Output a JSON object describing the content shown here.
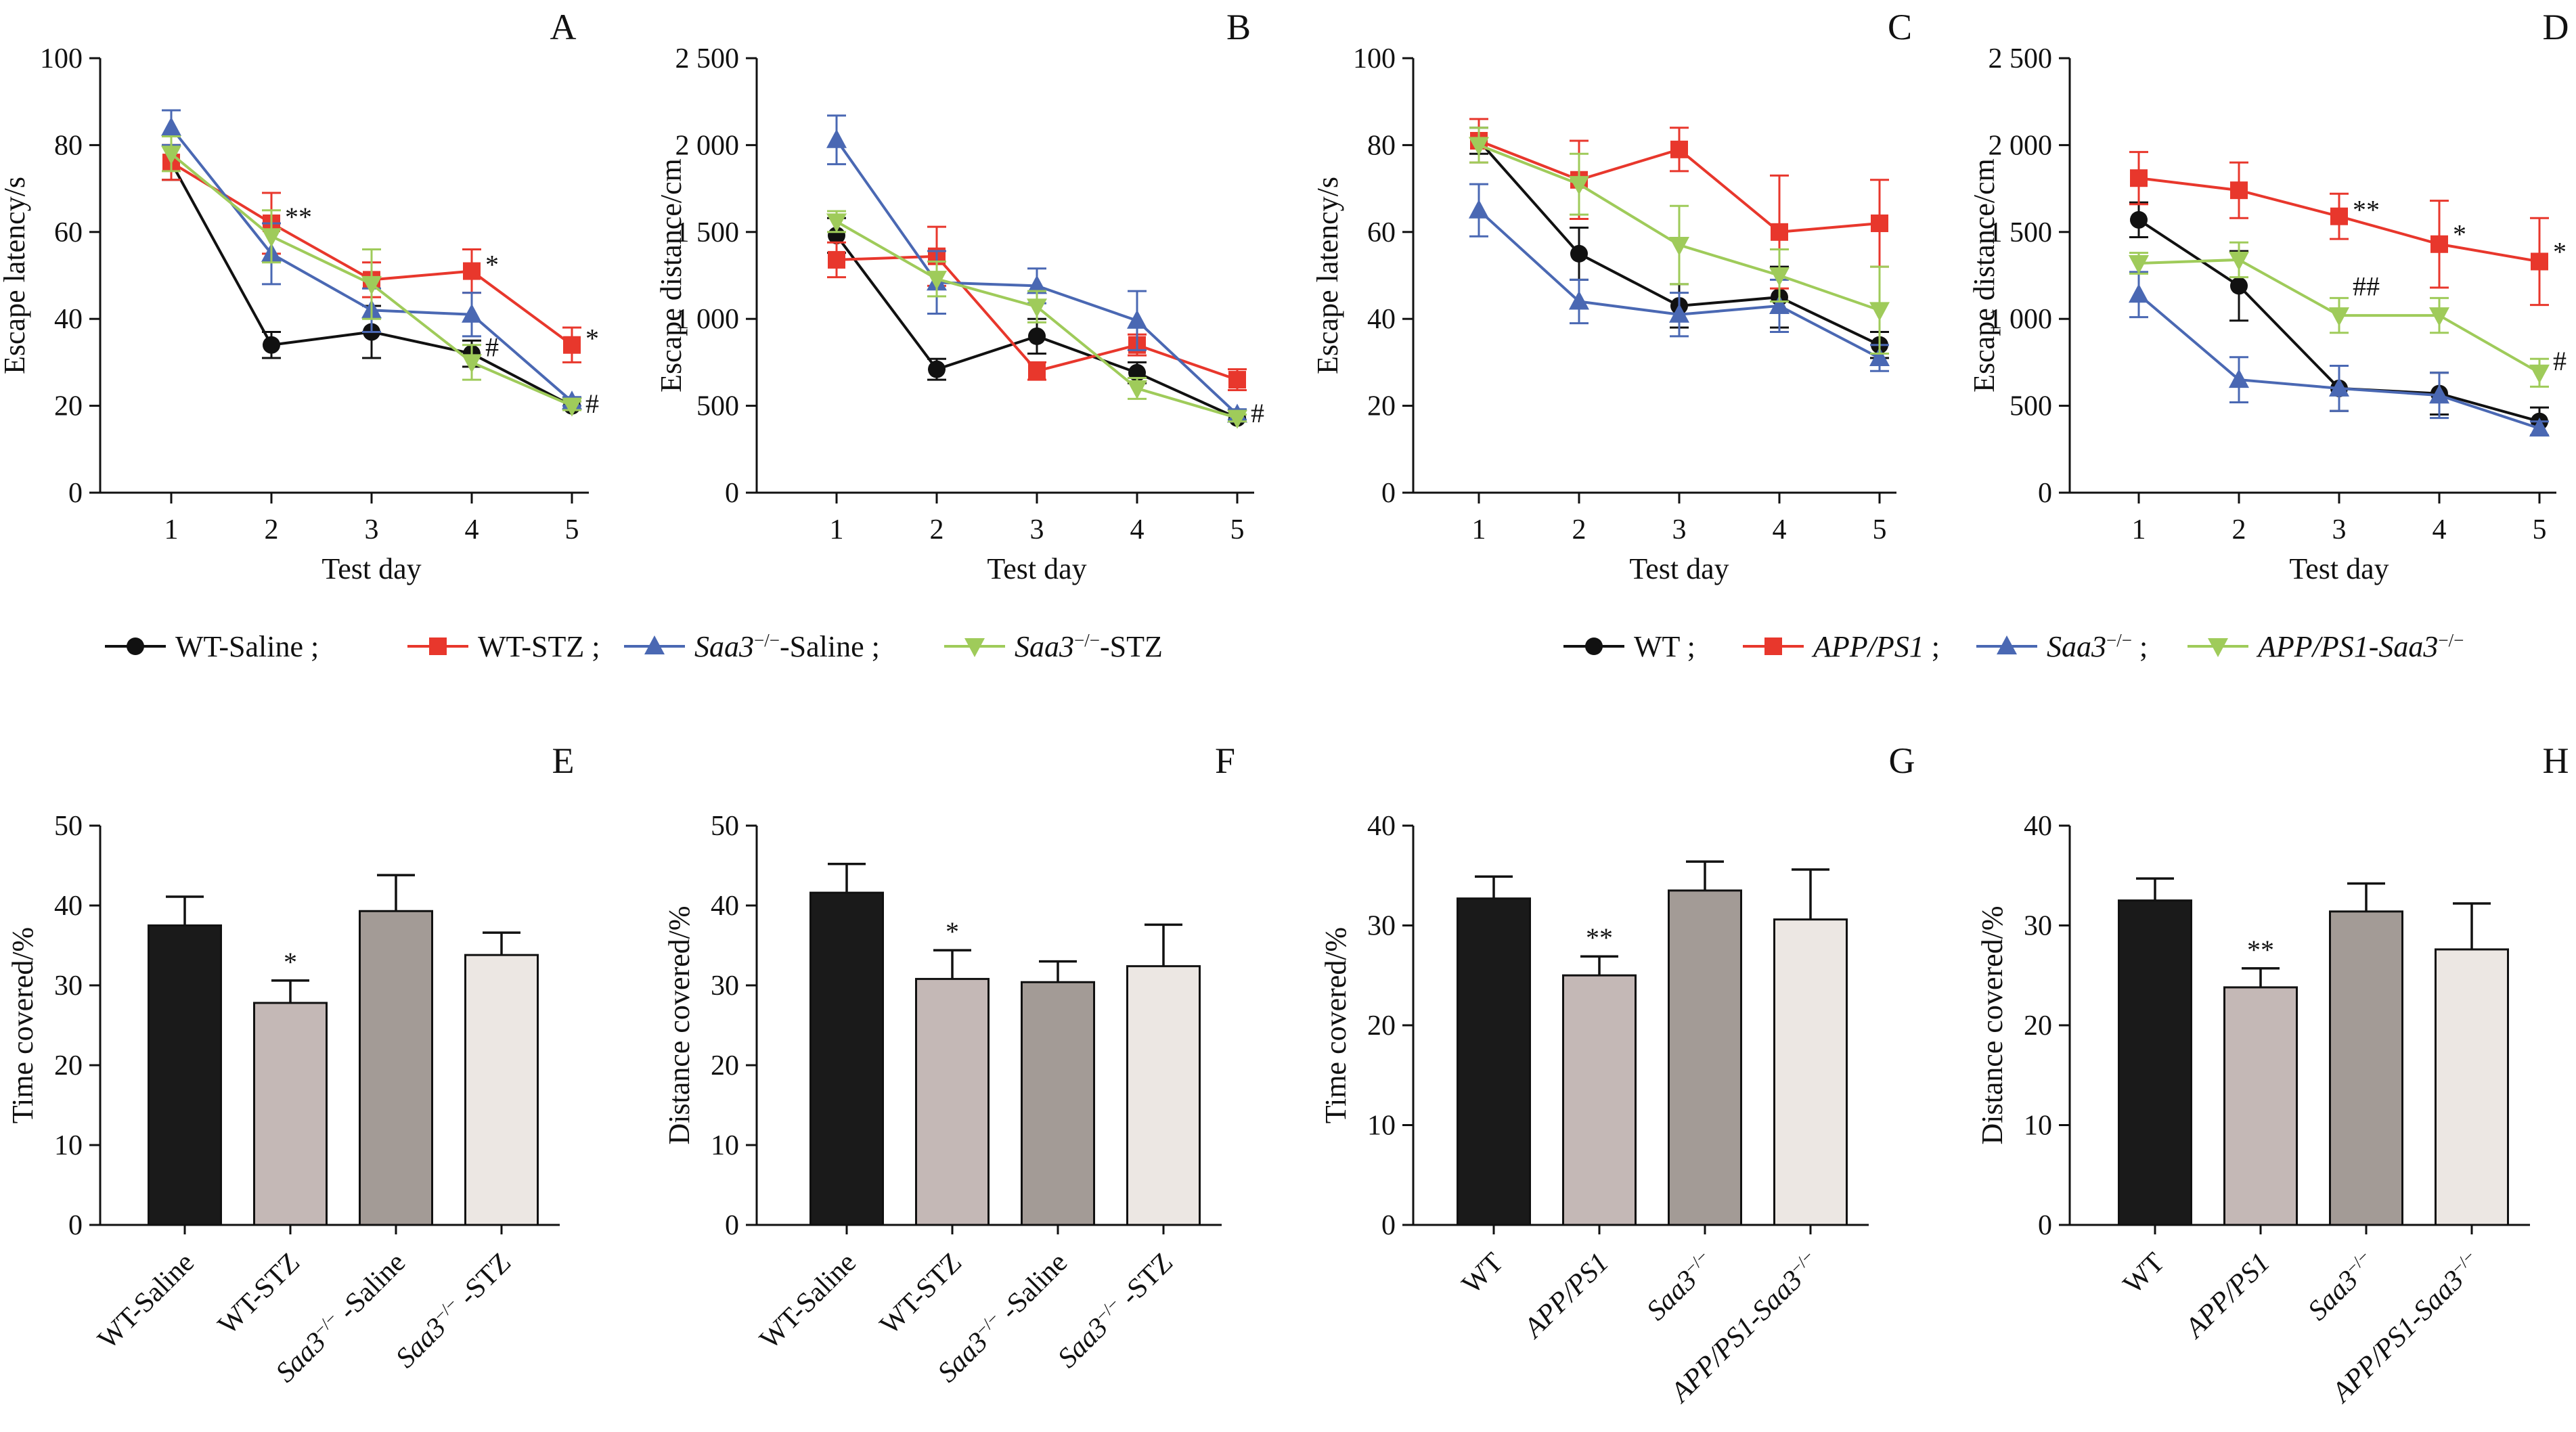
{
  "legends": [
    {
      "id": "AB",
      "entries": [
        {
          "name": "WT-Saline",
          "italic": "",
          "sup": "",
          "suffix": "WT-Saline ;",
          "color": "#111111",
          "marker": "circle"
        },
        {
          "name": "WT-STZ",
          "italic": "",
          "sup": "",
          "suffix": "WT-STZ ;",
          "color": "#e8372c",
          "marker": "square"
        },
        {
          "name": "Saa3-/- -Saline",
          "italic": "Saa3",
          "sup": "−/−",
          "suffix": "-Saline ;",
          "color": "#4a68b3",
          "marker": "triangle-up"
        },
        {
          "name": "Saa3-/- -STZ",
          "italic": "Saa3",
          "sup": "−/−",
          "suffix": "-STZ",
          "color": "#9fcb5a",
          "marker": "triangle-down"
        }
      ]
    },
    {
      "id": "CD",
      "entries": [
        {
          "name": "WT",
          "italic": "",
          "sup": "",
          "suffix": "WT ;",
          "color": "#111111",
          "marker": "circle"
        },
        {
          "name": "APP/PS1",
          "italic": "APP/PS1",
          "sup": "",
          "suffix": " ;",
          "color": "#e8372c",
          "marker": "square"
        },
        {
          "name": "Saa3-/-",
          "italic": "Saa3",
          "sup": "−/−",
          "suffix": " ;",
          "color": "#4a68b3",
          "marker": "triangle-up"
        },
        {
          "name": "APP/PS1-Saa3-/-",
          "italic": "APP/PS1-Saa3",
          "sup": "−/−",
          "suffix": "",
          "color": "#9fcb5a",
          "marker": "triangle-down"
        }
      ]
    }
  ],
  "chart_data": [
    {
      "panel": "A",
      "type": "line",
      "xlabel": "Test day",
      "ylabel": "Escape latency/s",
      "x": [
        1,
        2,
        3,
        4,
        5
      ],
      "ylim": [
        0,
        100
      ],
      "yticks": [
        0,
        20,
        40,
        60,
        80,
        100
      ],
      "series": [
        {
          "name": "WT-Saline",
          "values": [
            76,
            34,
            37,
            32,
            20
          ],
          "err": [
            4,
            3,
            6,
            3,
            1
          ],
          "color": "#111111",
          "marker": "circle"
        },
        {
          "name": "WT-STZ",
          "values": [
            76,
            62,
            49,
            51,
            34
          ],
          "err": [
            4,
            7,
            4,
            5,
            4
          ],
          "color": "#e8372c",
          "marker": "square"
        },
        {
          "name": "Saa3-/- -Saline",
          "values": [
            84,
            55,
            42,
            41,
            21
          ],
          "err": [
            4,
            7,
            5,
            5,
            1
          ],
          "color": "#4a68b3",
          "marker": "triangle-up"
        },
        {
          "name": "Saa3-/- -STZ",
          "values": [
            78,
            59,
            48,
            30,
            20
          ],
          "err": [
            4,
            6,
            8,
            4,
            1
          ],
          "color": "#9fcb5a",
          "marker": "triangle-down"
        }
      ],
      "annotations": [
        {
          "text": "**",
          "x": 2,
          "y": 62
        },
        {
          "text": "*",
          "x": 4,
          "y": 51
        },
        {
          "text": "#",
          "x": 4,
          "y": 32
        },
        {
          "text": "*",
          "x": 5,
          "y": 34
        },
        {
          "text": "#",
          "x": 5,
          "y": 19
        }
      ]
    },
    {
      "panel": "B",
      "type": "line",
      "xlabel": "Test day",
      "ylabel": "Escape distance/cm",
      "x": [
        1,
        2,
        3,
        4,
        5
      ],
      "ylim": [
        0,
        2500
      ],
      "yticks": [
        0,
        500,
        1000,
        1500,
        2000,
        2500
      ],
      "ytick_labels": [
        "0",
        "500",
        "1 000",
        "1 500",
        "2 000",
        "2 500"
      ],
      "series": [
        {
          "name": "WT-Saline",
          "values": [
            1480,
            710,
            900,
            690,
            430
          ],
          "err": [
            100,
            60,
            100,
            60,
            20
          ],
          "color": "#111111",
          "marker": "circle"
        },
        {
          "name": "WT-STZ",
          "values": [
            1340,
            1360,
            700,
            850,
            650
          ],
          "err": [
            100,
            170,
            50,
            60,
            60
          ],
          "color": "#e8372c",
          "marker": "square"
        },
        {
          "name": "Saa3-/- -Saline",
          "values": [
            2030,
            1210,
            1190,
            990,
            450
          ],
          "err": [
            140,
            180,
            100,
            170,
            30
          ],
          "color": "#4a68b3",
          "marker": "triangle-up"
        },
        {
          "name": "Saa3-/- -STZ",
          "values": [
            1560,
            1230,
            1070,
            600,
            430
          ],
          "err": [
            60,
            100,
            90,
            60,
            20
          ],
          "color": "#9fcb5a",
          "marker": "triangle-down"
        }
      ],
      "annotations": [
        {
          "text": "#",
          "x": 5,
          "y": 420
        }
      ]
    },
    {
      "panel": "C",
      "type": "line",
      "xlabel": "Test day",
      "ylabel": "Escape latency/s",
      "x": [
        1,
        2,
        3,
        4,
        5
      ],
      "ylim": [
        0,
        100
      ],
      "yticks": [
        0,
        20,
        40,
        60,
        80,
        100
      ],
      "series": [
        {
          "name": "WT",
          "values": [
            81,
            55,
            43,
            45,
            34
          ],
          "err": [
            3,
            6,
            5,
            7,
            3
          ],
          "color": "#111111",
          "marker": "circle"
        },
        {
          "name": "APP/PS1",
          "values": [
            81,
            72,
            79,
            60,
            62
          ],
          "err": [
            5,
            9,
            5,
            13,
            10
          ],
          "color": "#e8372c",
          "marker": "square"
        },
        {
          "name": "Saa3-/-",
          "values": [
            65,
            44,
            41,
            43,
            31
          ],
          "err": [
            6,
            5,
            5,
            6,
            3
          ],
          "color": "#4a68b3",
          "marker": "triangle-up"
        },
        {
          "name": "APP/PS1-Saa3-/-",
          "values": [
            80,
            71,
            57,
            50,
            42
          ],
          "err": [
            4,
            7,
            9,
            6,
            10
          ],
          "color": "#9fcb5a",
          "marker": "triangle-down"
        }
      ],
      "annotations": []
    },
    {
      "panel": "D",
      "type": "line",
      "xlabel": "Test day",
      "ylabel": "Escape distance/cm",
      "x": [
        1,
        2,
        3,
        4,
        5
      ],
      "ylim": [
        0,
        2500
      ],
      "yticks": [
        0,
        500,
        1000,
        1500,
        2000,
        2500
      ],
      "ytick_labels": [
        "0",
        "500",
        "1 000",
        "1 500",
        "2 000",
        "2 500"
      ],
      "series": [
        {
          "name": "WT",
          "values": [
            1570,
            1190,
            600,
            570,
            410
          ],
          "err": [
            100,
            200,
            130,
            120,
            80
          ],
          "color": "#111111",
          "marker": "circle"
        },
        {
          "name": "APP/PS1",
          "values": [
            1810,
            1740,
            1590,
            1430,
            1330
          ],
          "err": [
            150,
            160,
            130,
            250,
            250
          ],
          "color": "#e8372c",
          "marker": "square"
        },
        {
          "name": "Saa3-/-",
          "values": [
            1140,
            650,
            600,
            560,
            370
          ],
          "err": [
            130,
            130,
            130,
            130,
            40
          ],
          "color": "#4a68b3",
          "marker": "triangle-up"
        },
        {
          "name": "APP/PS1-Saa3-/-",
          "values": [
            1320,
            1340,
            1020,
            1020,
            690
          ],
          "err": [
            60,
            100,
            100,
            100,
            80
          ],
          "color": "#9fcb5a",
          "marker": "triangle-down"
        }
      ],
      "annotations": [
        {
          "text": "**",
          "x": 3,
          "y": 1590
        },
        {
          "text": "##",
          "x": 3,
          "y": 1150
        },
        {
          "text": "*",
          "x": 4,
          "y": 1450
        },
        {
          "text": "*",
          "x": 5,
          "y": 1350
        },
        {
          "text": "#",
          "x": 5,
          "y": 720
        }
      ]
    },
    {
      "panel": "E",
      "type": "bar",
      "ylabel": "Time covered/%",
      "ylim": [
        0,
        50
      ],
      "yticks": [
        0,
        10,
        20,
        30,
        40,
        50
      ],
      "categories": [
        {
          "plain": "WT-Saline",
          "italic": "",
          "sup": ""
        },
        {
          "plain": "WT-STZ",
          "italic": "",
          "sup": ""
        },
        {
          "plain": " -Saline",
          "italic": "Saa3",
          "sup": "−/−"
        },
        {
          "plain": " -STZ",
          "italic": "Saa3",
          "sup": "−/−"
        }
      ],
      "values": [
        37.5,
        27.8,
        39.3,
        33.8
      ],
      "err": [
        3.6,
        2.8,
        4.5,
        2.8
      ],
      "fills": [
        "#1a1a1a",
        "#c4b8b6",
        "#a39b96",
        "#ece7e3"
      ],
      "annotations": [
        {
          "index": 1,
          "text": "*"
        }
      ]
    },
    {
      "panel": "F",
      "type": "bar",
      "ylabel": "Distance covered/%",
      "ylim": [
        0,
        50
      ],
      "yticks": [
        0,
        10,
        20,
        30,
        40,
        50
      ],
      "categories": [
        {
          "plain": "WT-Saline",
          "italic": "",
          "sup": ""
        },
        {
          "plain": "WT-STZ",
          "italic": "",
          "sup": ""
        },
        {
          "plain": " -Saline",
          "italic": "Saa3",
          "sup": "−/−"
        },
        {
          "plain": " -STZ",
          "italic": "Saa3",
          "sup": "−/−"
        }
      ],
      "values": [
        41.6,
        30.8,
        30.4,
        32.4
      ],
      "err": [
        3.6,
        3.6,
        2.6,
        5.2
      ],
      "fills": [
        "#1a1a1a",
        "#c4b8b6",
        "#a39b96",
        "#ece7e3"
      ],
      "annotations": [
        {
          "index": 1,
          "text": "*"
        }
      ]
    },
    {
      "panel": "G",
      "type": "bar",
      "ylabel": "Time covered/%",
      "ylim": [
        0,
        40
      ],
      "yticks": [
        0,
        10,
        20,
        30,
        40
      ],
      "categories": [
        {
          "plain": "WT",
          "italic": "",
          "sup": ""
        },
        {
          "plain": "",
          "italic": "APP/PS1",
          "sup": ""
        },
        {
          "plain": "",
          "italic": "Saa3",
          "sup": "−/−"
        },
        {
          "plain": "",
          "italic": "APP/PS1-Saa3",
          "sup": "−/−"
        }
      ],
      "values": [
        32.7,
        25.0,
        33.5,
        30.6
      ],
      "err": [
        2.2,
        1.9,
        2.9,
        5.0
      ],
      "fills": [
        "#1a1a1a",
        "#c4b8b6",
        "#a39b96",
        "#ece7e3"
      ],
      "annotations": [
        {
          "index": 1,
          "text": "**"
        }
      ]
    },
    {
      "panel": "H",
      "type": "bar",
      "ylabel": "Distance covered/%",
      "ylim": [
        0,
        40
      ],
      "yticks": [
        0,
        10,
        20,
        30,
        40
      ],
      "categories": [
        {
          "plain": "WT",
          "italic": "",
          "sup": ""
        },
        {
          "plain": "",
          "italic": "APP/PS1",
          "sup": ""
        },
        {
          "plain": "",
          "italic": "Saa3",
          "sup": "−/−"
        },
        {
          "plain": "",
          "italic": "APP/PS1-Saa3",
          "sup": "−/−"
        }
      ],
      "values": [
        32.5,
        23.8,
        31.4,
        27.6
      ],
      "err": [
        2.2,
        1.9,
        2.8,
        4.6
      ],
      "fills": [
        "#1a1a1a",
        "#c4b8b6",
        "#a39b96",
        "#ece7e3"
      ],
      "annotations": [
        {
          "index": 1,
          "text": "**"
        }
      ]
    }
  ]
}
